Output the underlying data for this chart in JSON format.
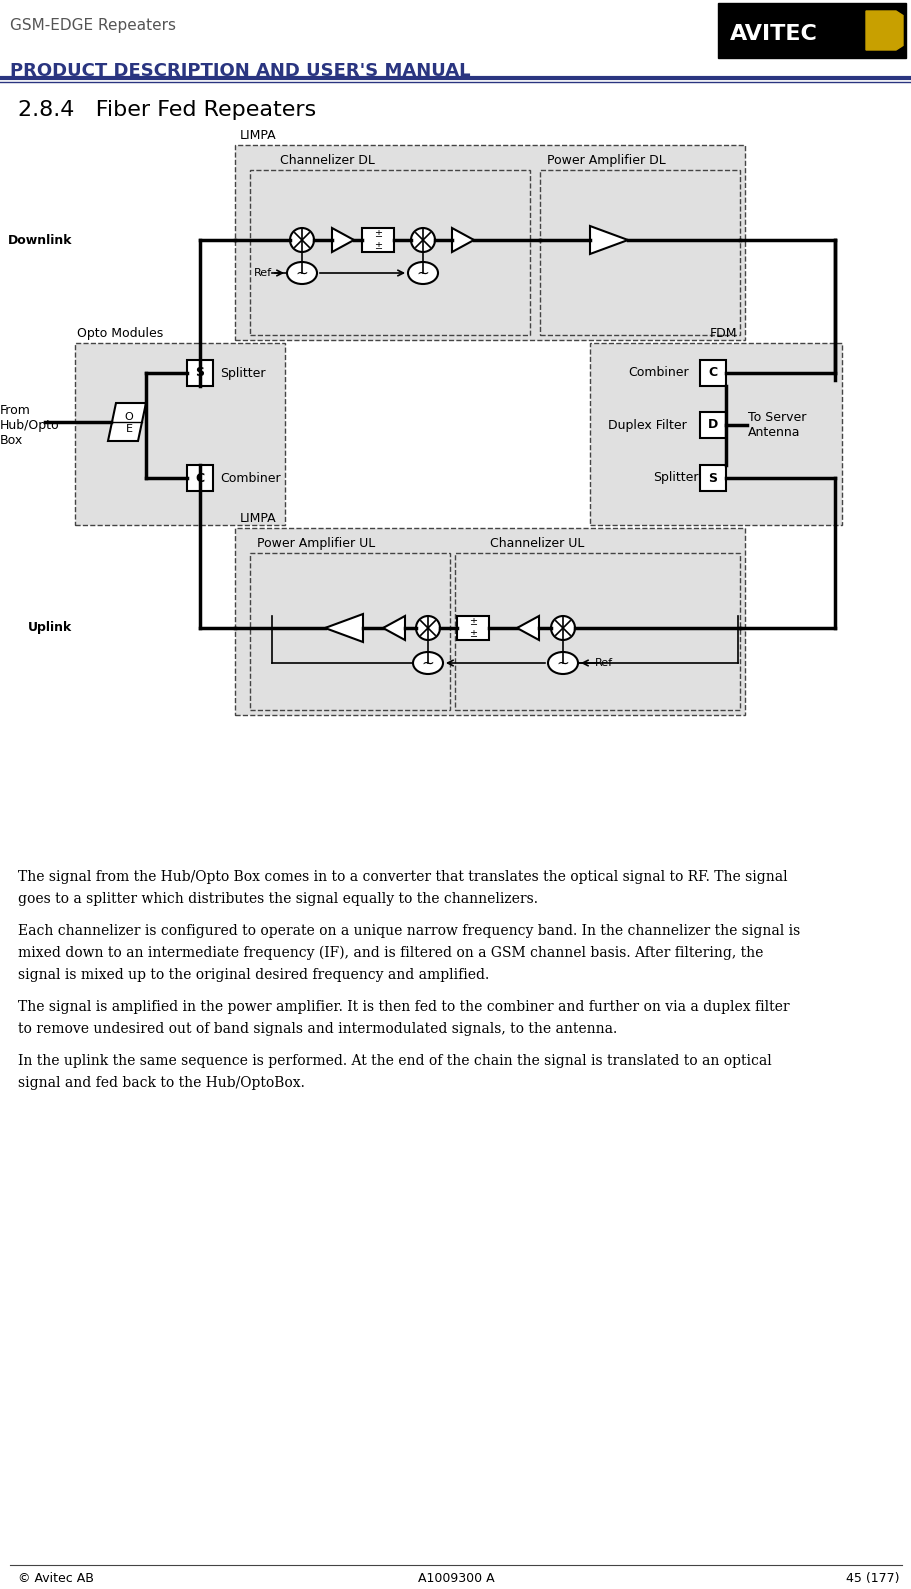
{
  "page_title": "GSM-EDGE Repeaters",
  "page_subtitle": "PRODUCT DESCRIPTION AND USER'S MANUAL",
  "section_title": "2.8.4   Fiber Fed Repeaters",
  "header_line_color": "#2a3580",
  "bg_color": "#ffffff",
  "diagram_bg": "#e0e0e0",
  "body_text": [
    "The signal from the Hub/Opto Box comes in to a converter that translates the optical signal to RF. The signal",
    "goes to a splitter which distributes the signal equally to the channelizers.",
    "",
    "Each channelizer is configured to operate on a unique narrow frequency band. In the channelizer the signal is",
    "mixed down to an intermediate frequency (IF), and is filtered on a GSM channel basis. After filtering, the",
    "signal is mixed up to the original desired frequency and amplified.",
    "",
    "The signal is amplified in the power amplifier. It is then fed to the combiner and further on via a duplex filter",
    "to remove undesired out of band signals and intermodulated signals, to the antenna.",
    "",
    "In the uplink the same sequence is performed. At the end of the chain the signal is translated to an optical",
    "signal and fed back to the Hub/OptoBox."
  ],
  "footer_left": "© Avitec AB",
  "footer_center": "A1009300 A",
  "footer_right": "45 (177)"
}
